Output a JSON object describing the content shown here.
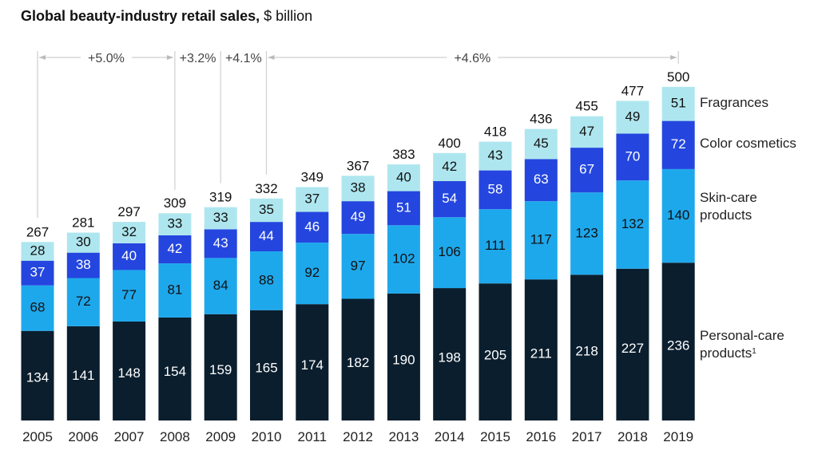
{
  "chart_data": {
    "type": "bar",
    "stacked": true,
    "title": "Global beauty-industry retail sales,",
    "title_unit": "$ billion",
    "xlabel": "",
    "ylabel": "",
    "ylim": [
      0,
      500
    ],
    "grid": false,
    "legend_position": "right",
    "categories": [
      "2005",
      "2006",
      "2007",
      "2008",
      "2009",
      "2010",
      "2011",
      "2012",
      "2013",
      "2014",
      "2015",
      "2016",
      "2017",
      "2018",
      "2019"
    ],
    "totals": [
      267,
      281,
      297,
      309,
      319,
      332,
      349,
      367,
      383,
      400,
      418,
      436,
      455,
      477,
      500
    ],
    "series": [
      {
        "name": "Personal-care products",
        "footnote": "1",
        "color": "#0a1e2e",
        "label_color": "#ffffff",
        "values": [
          134,
          141,
          148,
          154,
          159,
          165,
          174,
          182,
          190,
          198,
          205,
          211,
          218,
          227,
          236
        ]
      },
      {
        "name": "Skin-care products",
        "color": "#1ea8ec",
        "label_color": "#111111",
        "values": [
          68,
          72,
          77,
          81,
          84,
          88,
          92,
          97,
          102,
          106,
          111,
          117,
          123,
          132,
          140
        ]
      },
      {
        "name": "Color cosmetics",
        "color": "#2446df",
        "label_color": "#ffffff",
        "values": [
          37,
          38,
          40,
          42,
          43,
          44,
          46,
          49,
          51,
          54,
          58,
          63,
          67,
          70,
          72
        ]
      },
      {
        "name": "Fragrances",
        "color": "#aee6ef",
        "label_color": "#111111",
        "values": [
          28,
          30,
          32,
          33,
          33,
          35,
          37,
          38,
          40,
          42,
          43,
          45,
          47,
          49,
          51
        ]
      }
    ],
    "legend": [
      {
        "line1": "Fragrances",
        "line2": ""
      },
      {
        "line1": "Color cosmetics",
        "line2": ""
      },
      {
        "line1": "Skin-care",
        "line2": "products"
      },
      {
        "line1": "Personal-care",
        "line2": "products",
        "superscript": "1"
      }
    ],
    "annotations": [
      {
        "label": "+5.0%",
        "from": "2005",
        "to": "2008"
      },
      {
        "label": "+3.2%",
        "from": "2008",
        "to": "2009"
      },
      {
        "label": "+4.1%",
        "from": "2009",
        "to": "2010"
      },
      {
        "label": "+4.6%",
        "from": "2010",
        "to": "2019"
      }
    ]
  }
}
